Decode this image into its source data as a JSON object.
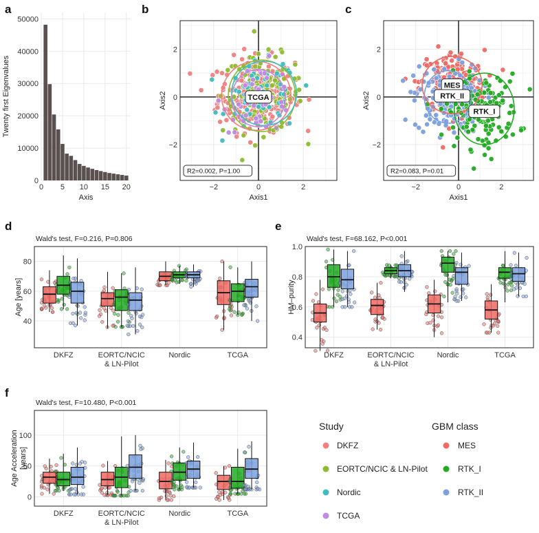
{
  "panels": {
    "a": "a",
    "b": "b",
    "c": "c",
    "d": "d",
    "e": "e",
    "f": "f"
  },
  "colors": {
    "DKFZ": "#f08080",
    "EORTC": "#8fbc2f",
    "Nordic": "#40bcc0",
    "TCGA": "#c08ae0",
    "MES": "#ee6a64",
    "RTK_I": "#22aa22",
    "RTK_II": "#7ba0dd"
  },
  "chart_data": [
    {
      "id": "a",
      "type": "bar",
      "xlabel": "Axis",
      "ylabel": "Twenty first Eigenvalues",
      "xticks": [
        "0",
        "5",
        "10",
        "15",
        "20"
      ],
      "yticks": [
        "0",
        "10000",
        "20000",
        "30000",
        "40000",
        "50000"
      ],
      "ylim": [
        0,
        52000
      ],
      "xlim": [
        0,
        21
      ],
      "x": [
        1,
        2,
        3,
        4,
        5,
        6,
        7,
        8,
        9,
        10,
        11,
        12,
        13,
        14,
        15,
        16,
        17,
        18,
        19,
        20
      ],
      "values": [
        48200,
        29800,
        20400,
        15800,
        11300,
        8300,
        7600,
        6300,
        5100,
        4500,
        4000,
        3600,
        3200,
        2900,
        2600,
        2300,
        2100,
        1900,
        1700,
        1500
      ]
    },
    {
      "id": "b",
      "type": "scatter",
      "xlabel": "Axis1",
      "ylabel": "Axis2",
      "xticks": [
        "-2",
        "0",
        "2"
      ],
      "yticks": [
        "-2",
        "0",
        "2"
      ],
      "xlim": [
        -3.5,
        3.5
      ],
      "ylim": [
        -3.5,
        3.2
      ],
      "groups": [
        "DKFZ",
        "EORTC",
        "Nordic",
        "TCGA"
      ],
      "ellipses": [
        {
          "name": "DKFZ",
          "cx": -0.1,
          "cy": 0.05,
          "rx": 1.55,
          "ry": 1.45
        },
        {
          "name": "EORTC",
          "cx": 0.15,
          "cy": 0.05,
          "rx": 1.5,
          "ry": 1.5
        },
        {
          "name": "Nordic",
          "cx": 0.25,
          "cy": 0.15,
          "rx": 1.45,
          "ry": 1.35
        },
        {
          "name": "TCGA",
          "cx": 0.0,
          "cy": -0.05,
          "rx": 1.2,
          "ry": 1.2
        }
      ],
      "label": "TCGA",
      "annotation": "R2=0.002, P=1.00"
    },
    {
      "id": "c",
      "type": "scatter",
      "xlabel": "Axis1",
      "ylabel": "Axis2",
      "xticks": [
        "-2",
        "0",
        "2"
      ],
      "yticks": [
        "-2",
        "0",
        "2"
      ],
      "xlim": [
        -3.5,
        3.5
      ],
      "ylim": [
        -3.5,
        3.2
      ],
      "groups": [
        "MES",
        "RTK_I",
        "RTK_II"
      ],
      "ellipses": [
        {
          "name": "MES",
          "cx": -0.3,
          "cy": 0.5,
          "rx": 1.4,
          "ry": 1.2
        },
        {
          "name": "RTK_I",
          "cx": 1.2,
          "cy": -0.5,
          "rx": 1.4,
          "ry": 1.5
        },
        {
          "name": "RTK_II",
          "cx": -0.5,
          "cy": 0.0,
          "rx": 1.1,
          "ry": 1.1
        }
      ],
      "labels": [
        "MES",
        "RTK_II",
        "RTK_I"
      ],
      "annotation": "R2=0.083, P=0.01"
    },
    {
      "id": "d",
      "type": "box",
      "subtitle": "Wald's test, F=0.216, P=0.806",
      "ylabel": "Age [years]",
      "ylim": [
        22,
        90
      ],
      "yticks": [
        40,
        60,
        80
      ],
      "categories": [
        "DKFZ",
        "EORTC/NCIC\n& LN-Pilot",
        "Nordic",
        "TCGA"
      ],
      "boxes": [
        [
          [
            46,
            52,
            58,
            63,
            74
          ],
          [
            48,
            58,
            64,
            70,
            84
          ],
          [
            37,
            52,
            60,
            66,
            82
          ]
        ],
        [
          [
            35,
            50,
            55,
            59,
            73
          ],
          [
            36,
            47,
            56,
            61,
            72
          ],
          [
            31,
            47,
            54,
            59,
            76
          ]
        ],
        [
          [
            64,
            67,
            70,
            73,
            80
          ],
          [
            65,
            69,
            71,
            73,
            77
          ],
          [
            63,
            69,
            71,
            73,
            78
          ]
        ],
        [
          [
            34,
            51,
            59,
            67,
            80
          ],
          [
            44,
            53,
            60,
            65,
            76
          ],
          [
            40,
            56,
            63,
            68,
            80
          ]
        ]
      ]
    },
    {
      "id": "e",
      "type": "box",
      "subtitle": "Wald's test, F=68.162, P<0.001",
      "ylabel": "HM–purity",
      "ylim": [
        0.33,
        1.0
      ],
      "yticks": [
        0.4,
        0.6,
        0.8,
        1.0
      ],
      "categories": [
        "DKFZ",
        "EORTC/NCIC\n& LN-Pilot",
        "Nordic",
        "TCGA"
      ],
      "boxes": [
        [
          [
            0.31,
            0.5,
            0.56,
            0.62,
            0.78
          ],
          [
            0.6,
            0.73,
            0.8,
            0.88,
            0.98
          ],
          [
            0.6,
            0.72,
            0.78,
            0.85,
            0.97
          ]
        ],
        [
          [
            0.45,
            0.55,
            0.61,
            0.65,
            0.76
          ],
          [
            0.79,
            0.82,
            0.84,
            0.86,
            0.88
          ],
          [
            0.7,
            0.8,
            0.84,
            0.88,
            0.97
          ]
        ],
        [
          [
            0.4,
            0.56,
            0.62,
            0.68,
            0.78
          ],
          [
            0.63,
            0.83,
            0.89,
            0.93,
            0.97
          ],
          [
            0.64,
            0.75,
            0.83,
            0.86,
            0.96
          ]
        ],
        [
          [
            0.43,
            0.52,
            0.58,
            0.64,
            0.75
          ],
          [
            0.63,
            0.79,
            0.83,
            0.86,
            0.97
          ],
          [
            0.67,
            0.77,
            0.82,
            0.86,
            0.96
          ]
        ]
      ]
    },
    {
      "id": "f",
      "type": "box",
      "subtitle": "Wald's test, F=10.480, P<0.001",
      "ylabel": "Age Acceleration\n[years]",
      "ylim": [
        -15,
        140
      ],
      "yticks": [
        0,
        50,
        100
      ],
      "categories": [
        "DKFZ",
        "EORTC/NCIC\n& LN-Pilot",
        "Nordic",
        "TCGA"
      ],
      "boxes": [
        [
          [
            5,
            22,
            32,
            40,
            62
          ],
          [
            10,
            18,
            28,
            40,
            70
          ],
          [
            4,
            20,
            32,
            48,
            80
          ]
        ],
        [
          [
            3,
            18,
            28,
            40,
            58
          ],
          [
            2,
            15,
            32,
            48,
            98
          ],
          [
            10,
            30,
            48,
            68,
            100
          ]
        ],
        [
          [
            -5,
            13,
            25,
            40,
            60
          ],
          [
            12,
            27,
            40,
            55,
            80
          ],
          [
            15,
            30,
            45,
            58,
            88
          ]
        ],
        [
          [
            -5,
            12,
            25,
            35,
            50
          ],
          [
            5,
            14,
            25,
            48,
            78
          ],
          [
            12,
            30,
            45,
            62,
            90
          ]
        ]
      ]
    }
  ],
  "legend_study": {
    "title": "Study",
    "items": [
      "DKFZ",
      "EORTC/NCIC & LN-Pilot",
      "Nordic",
      "TCGA"
    ]
  },
  "legend_gbm": {
    "title": "GBM class",
    "items": [
      "MES",
      "RTK_I",
      "RTK_II"
    ]
  }
}
